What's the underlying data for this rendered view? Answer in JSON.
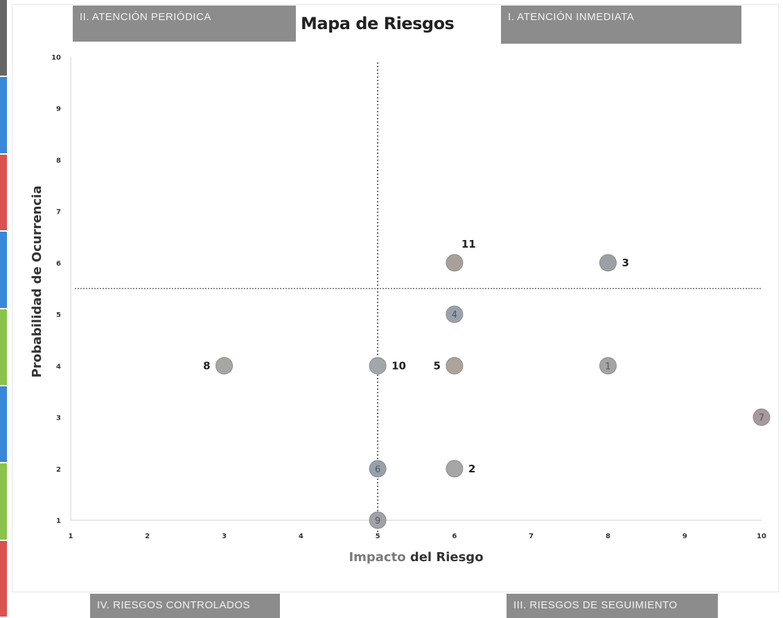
{
  "chart_data": {
    "type": "scatter",
    "title": "Mapa de Riesgos",
    "xlabel_parts": [
      {
        "text": "Impacto",
        "color": "#7a7a7a"
      },
      {
        "text": " del Riesgo",
        "color": "#333333"
      }
    ],
    "ylabel": "Probabilidad de Ocurrencia",
    "xlim": [
      1,
      10
    ],
    "ylim": [
      1,
      10
    ],
    "xticks": [
      "1",
      "2",
      "3",
      "4",
      "5",
      "6",
      "7",
      "8",
      "9",
      "10"
    ],
    "yticks": [
      "1",
      "2",
      "3",
      "4",
      "5",
      "6",
      "7",
      "8",
      "9",
      "10"
    ],
    "grid": false,
    "threshold_lines": {
      "x": 5,
      "y": 5.5
    },
    "quadrants": [
      {
        "key": "q2",
        "label": "II. ATENCIÓN PERIÓDICA"
      },
      {
        "key": "q1",
        "label": "I. ATENCIÓN INMEDIATA"
      },
      {
        "key": "q4",
        "label": "IV. RIESGOS CONTROLADOS"
      },
      {
        "key": "q3",
        "label": "III. RIESGOS DE SEGUIMIENTO"
      }
    ],
    "points": [
      {
        "id": "11",
        "x": 6,
        "y": 6,
        "label_pos": "above-right",
        "color": "#a9a09a"
      },
      {
        "id": "3",
        "x": 8,
        "y": 6,
        "label_pos": "right",
        "color": "#9e9fa6"
      },
      {
        "id": "4",
        "x": 6,
        "y": 5,
        "label_pos": "inside",
        "color": "#9aa3ad"
      },
      {
        "id": "8",
        "x": 3,
        "y": 4,
        "label_pos": "left",
        "color": "#a8a6a4"
      },
      {
        "id": "10",
        "x": 5,
        "y": 4,
        "label_pos": "right",
        "color": "#a3a7ad"
      },
      {
        "id": "5",
        "x": 6,
        "y": 4,
        "label_pos": "left",
        "color": "#aea39a"
      },
      {
        "id": "1",
        "x": 8,
        "y": 4,
        "label_pos": "inside",
        "color": "#a4a4a4"
      },
      {
        "id": "7",
        "x": 10,
        "y": 3,
        "label_pos": "inside",
        "color": "#a9999c"
      },
      {
        "id": "6",
        "x": 5,
        "y": 2,
        "label_pos": "inside",
        "color": "#97a1ab"
      },
      {
        "id": "2",
        "x": 6,
        "y": 2,
        "label_pos": "right",
        "color": "#a6a6a8"
      },
      {
        "id": "9",
        "x": 5,
        "y": 1,
        "label_pos": "inside",
        "color": "#a0a2a8"
      }
    ]
  },
  "colors": {
    "quadrant_box": "#8c8c8c",
    "threshold_line": "#444444",
    "axis_line": "#cfcfcf",
    "left_strip": [
      "#666666",
      "#3a86d8",
      "#d9534f",
      "#3a86d8",
      "#8bc34a",
      "#3a86d8",
      "#8bc34a",
      "#d9534f"
    ]
  }
}
